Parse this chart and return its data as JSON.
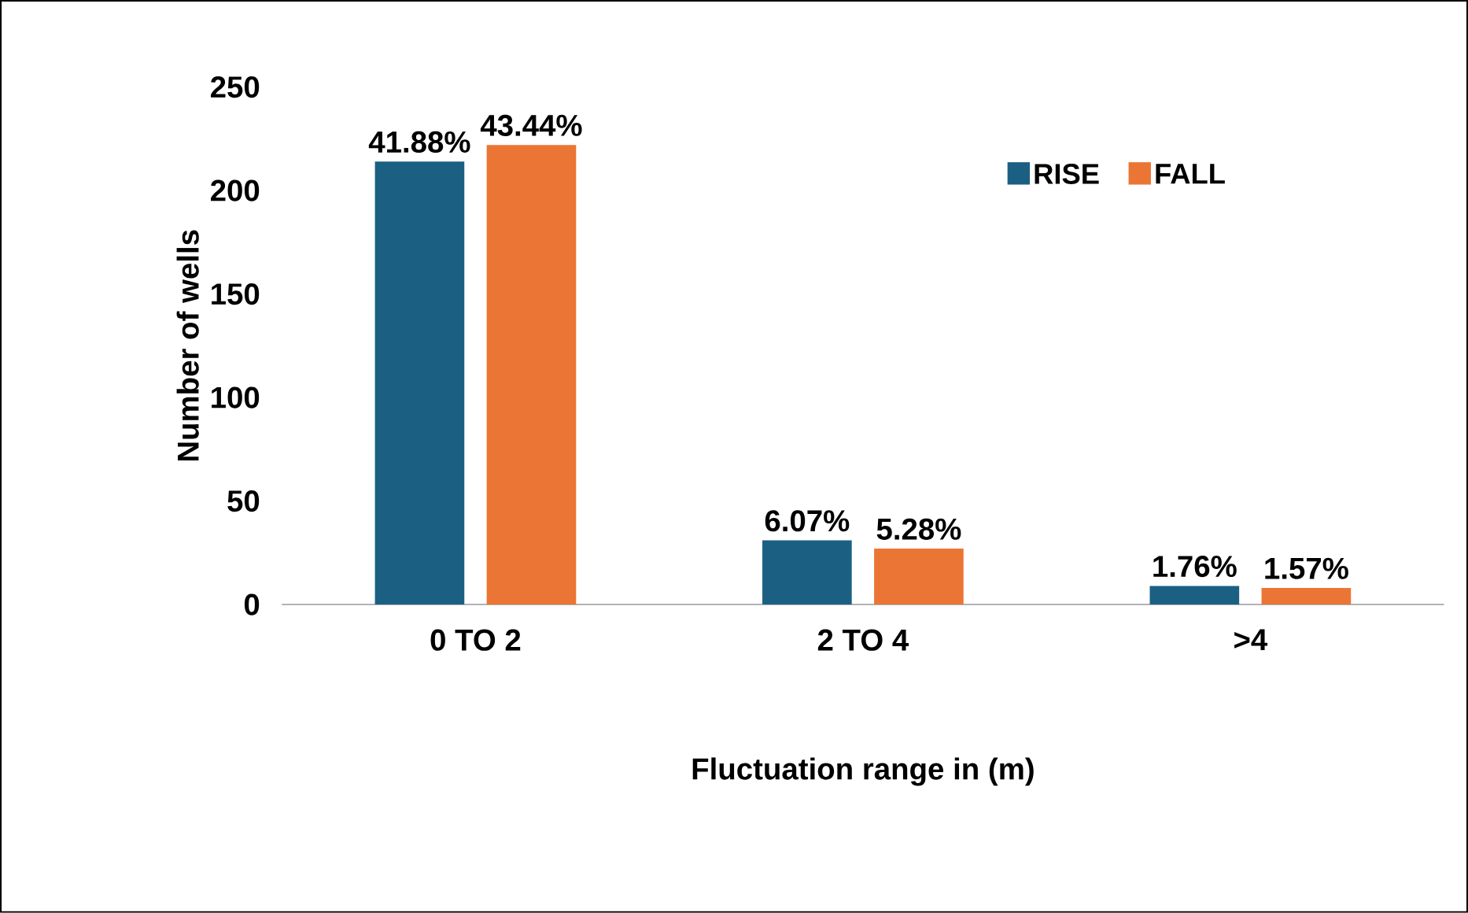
{
  "chart_data": {
    "type": "bar",
    "xlabel": "Fluctuation range in (m)",
    "ylabel": "Number of wells",
    "categories": [
      "0 TO 2",
      "2 TO 4",
      ">4"
    ],
    "series": [
      {
        "name": "RISE",
        "color": "#1b6083",
        "values": [
          214,
          31,
          9
        ]
      },
      {
        "name": "FALL",
        "color": "#eb7534",
        "values": [
          222,
          27,
          8
        ]
      }
    ],
    "annotations": [
      "41.88%",
      "6.07%",
      "1.76%",
      "43.44%",
      "5.28%",
      "1.57%"
    ],
    "ylim": [
      0,
      250
    ],
    "yticks": [
      0,
      50,
      100,
      150,
      200,
      250
    ],
    "grid": false,
    "legend": "top right"
  }
}
